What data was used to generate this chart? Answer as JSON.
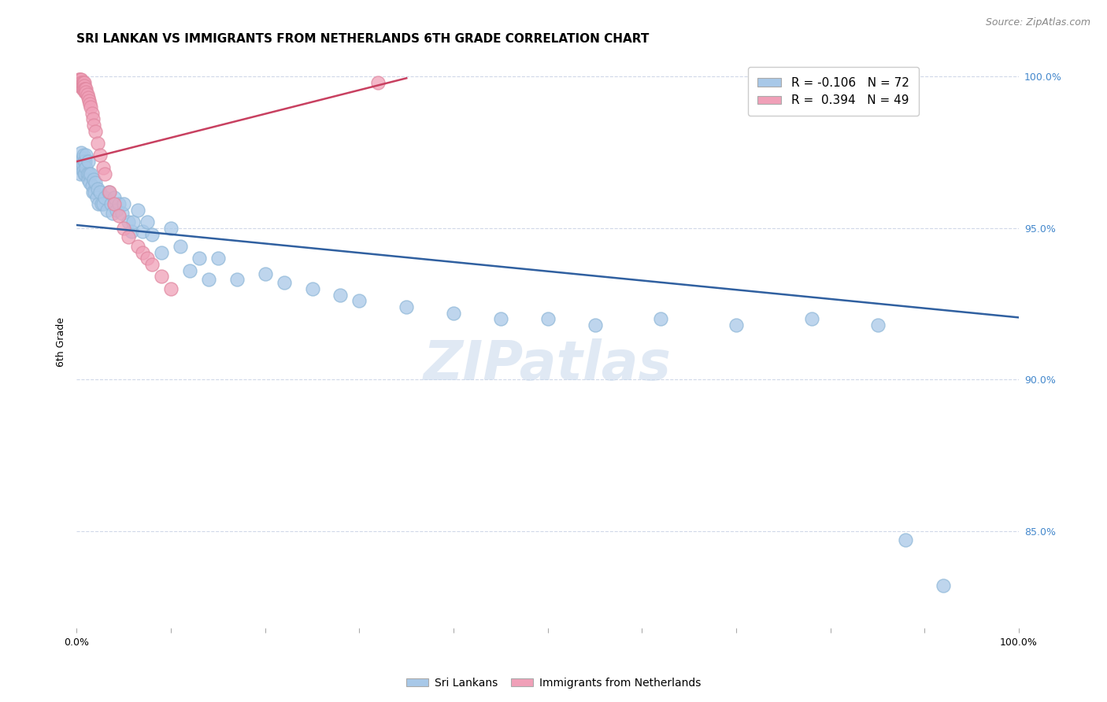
{
  "title": "SRI LANKAN VS IMMIGRANTS FROM NETHERLANDS 6TH GRADE CORRELATION CHART",
  "source": "Source: ZipAtlas.com",
  "ylabel": "6th Grade",
  "ytick_labels": [
    "100.0%",
    "95.0%",
    "90.0%",
    "85.0%"
  ],
  "ytick_values": [
    1.0,
    0.95,
    0.9,
    0.85
  ],
  "xlim": [
    0.0,
    1.0
  ],
  "ylim": [
    0.818,
    1.007
  ],
  "legend_blue_R": "-0.106",
  "legend_blue_N": "72",
  "legend_pink_R": "0.394",
  "legend_pink_N": "49",
  "legend_label_blue": "Sri Lankans",
  "legend_label_pink": "Immigrants from Netherlands",
  "watermark": "ZIPatlas",
  "blue_color": "#a8c8e8",
  "blue_edge_color": "#90b8d8",
  "blue_line_color": "#3060a0",
  "pink_color": "#f0a0b8",
  "pink_edge_color": "#e088a0",
  "pink_line_color": "#c84060",
  "blue_scatter_x": [
    0.003,
    0.004,
    0.005,
    0.005,
    0.006,
    0.006,
    0.007,
    0.007,
    0.008,
    0.008,
    0.009,
    0.009,
    0.01,
    0.01,
    0.011,
    0.012,
    0.012,
    0.013,
    0.014,
    0.015,
    0.016,
    0.017,
    0.018,
    0.019,
    0.02,
    0.021,
    0.022,
    0.023,
    0.025,
    0.026,
    0.028,
    0.03,
    0.032,
    0.034,
    0.036,
    0.038,
    0.04,
    0.042,
    0.045,
    0.048,
    0.05,
    0.055,
    0.058,
    0.06,
    0.065,
    0.07,
    0.075,
    0.08,
    0.09,
    0.1,
    0.11,
    0.12,
    0.13,
    0.14,
    0.15,
    0.17,
    0.2,
    0.22,
    0.25,
    0.28,
    0.3,
    0.35,
    0.4,
    0.45,
    0.5,
    0.55,
    0.62,
    0.7,
    0.78,
    0.85,
    0.88,
    0.92
  ],
  "blue_scatter_y": [
    0.97,
    0.968,
    0.975,
    0.972,
    0.973,
    0.971,
    0.974,
    0.969,
    0.972,
    0.968,
    0.972,
    0.968,
    0.974,
    0.97,
    0.968,
    0.972,
    0.966,
    0.968,
    0.965,
    0.968,
    0.964,
    0.962,
    0.966,
    0.962,
    0.965,
    0.96,
    0.963,
    0.958,
    0.962,
    0.958,
    0.958,
    0.96,
    0.956,
    0.962,
    0.958,
    0.955,
    0.96,
    0.956,
    0.958,
    0.955,
    0.958,
    0.952,
    0.949,
    0.952,
    0.956,
    0.949,
    0.952,
    0.948,
    0.942,
    0.95,
    0.944,
    0.936,
    0.94,
    0.933,
    0.94,
    0.933,
    0.935,
    0.932,
    0.93,
    0.928,
    0.926,
    0.924,
    0.922,
    0.92,
    0.92,
    0.918,
    0.92,
    0.918,
    0.92,
    0.918,
    0.847,
    0.832
  ],
  "pink_scatter_x": [
    0.002,
    0.002,
    0.003,
    0.003,
    0.003,
    0.004,
    0.004,
    0.004,
    0.005,
    0.005,
    0.005,
    0.006,
    0.006,
    0.006,
    0.007,
    0.007,
    0.007,
    0.008,
    0.008,
    0.008,
    0.009,
    0.009,
    0.01,
    0.01,
    0.011,
    0.012,
    0.013,
    0.014,
    0.015,
    0.016,
    0.017,
    0.018,
    0.02,
    0.022,
    0.025,
    0.028,
    0.03,
    0.035,
    0.04,
    0.045,
    0.05,
    0.055,
    0.065,
    0.07,
    0.075,
    0.08,
    0.09,
    0.1,
    0.32
  ],
  "pink_scatter_y": [
    0.998,
    0.999,
    0.999,
    0.998,
    0.997,
    0.999,
    0.998,
    0.997,
    0.999,
    0.998,
    0.997,
    0.998,
    0.997,
    0.996,
    0.998,
    0.997,
    0.996,
    0.998,
    0.997,
    0.996,
    0.996,
    0.995,
    0.996,
    0.995,
    0.994,
    0.993,
    0.992,
    0.991,
    0.99,
    0.988,
    0.986,
    0.984,
    0.982,
    0.978,
    0.974,
    0.97,
    0.968,
    0.962,
    0.958,
    0.954,
    0.95,
    0.947,
    0.944,
    0.942,
    0.94,
    0.938,
    0.934,
    0.93,
    0.998
  ],
  "blue_trendline_x": [
    0.0,
    1.0
  ],
  "blue_trendline_y": [
    0.951,
    0.9205
  ],
  "pink_trendline_x": [
    0.0,
    0.35
  ],
  "pink_trendline_y": [
    0.972,
    0.9995
  ],
  "grid_color": "#d0d8e8",
  "background_color": "#ffffff",
  "title_fontsize": 11,
  "source_fontsize": 9,
  "ylabel_fontsize": 9,
  "tick_fontsize": 9,
  "legend_fontsize": 11,
  "watermark_fontsize": 50,
  "watermark_color": "#c8d8ec",
  "right_tick_color": "#4488cc"
}
